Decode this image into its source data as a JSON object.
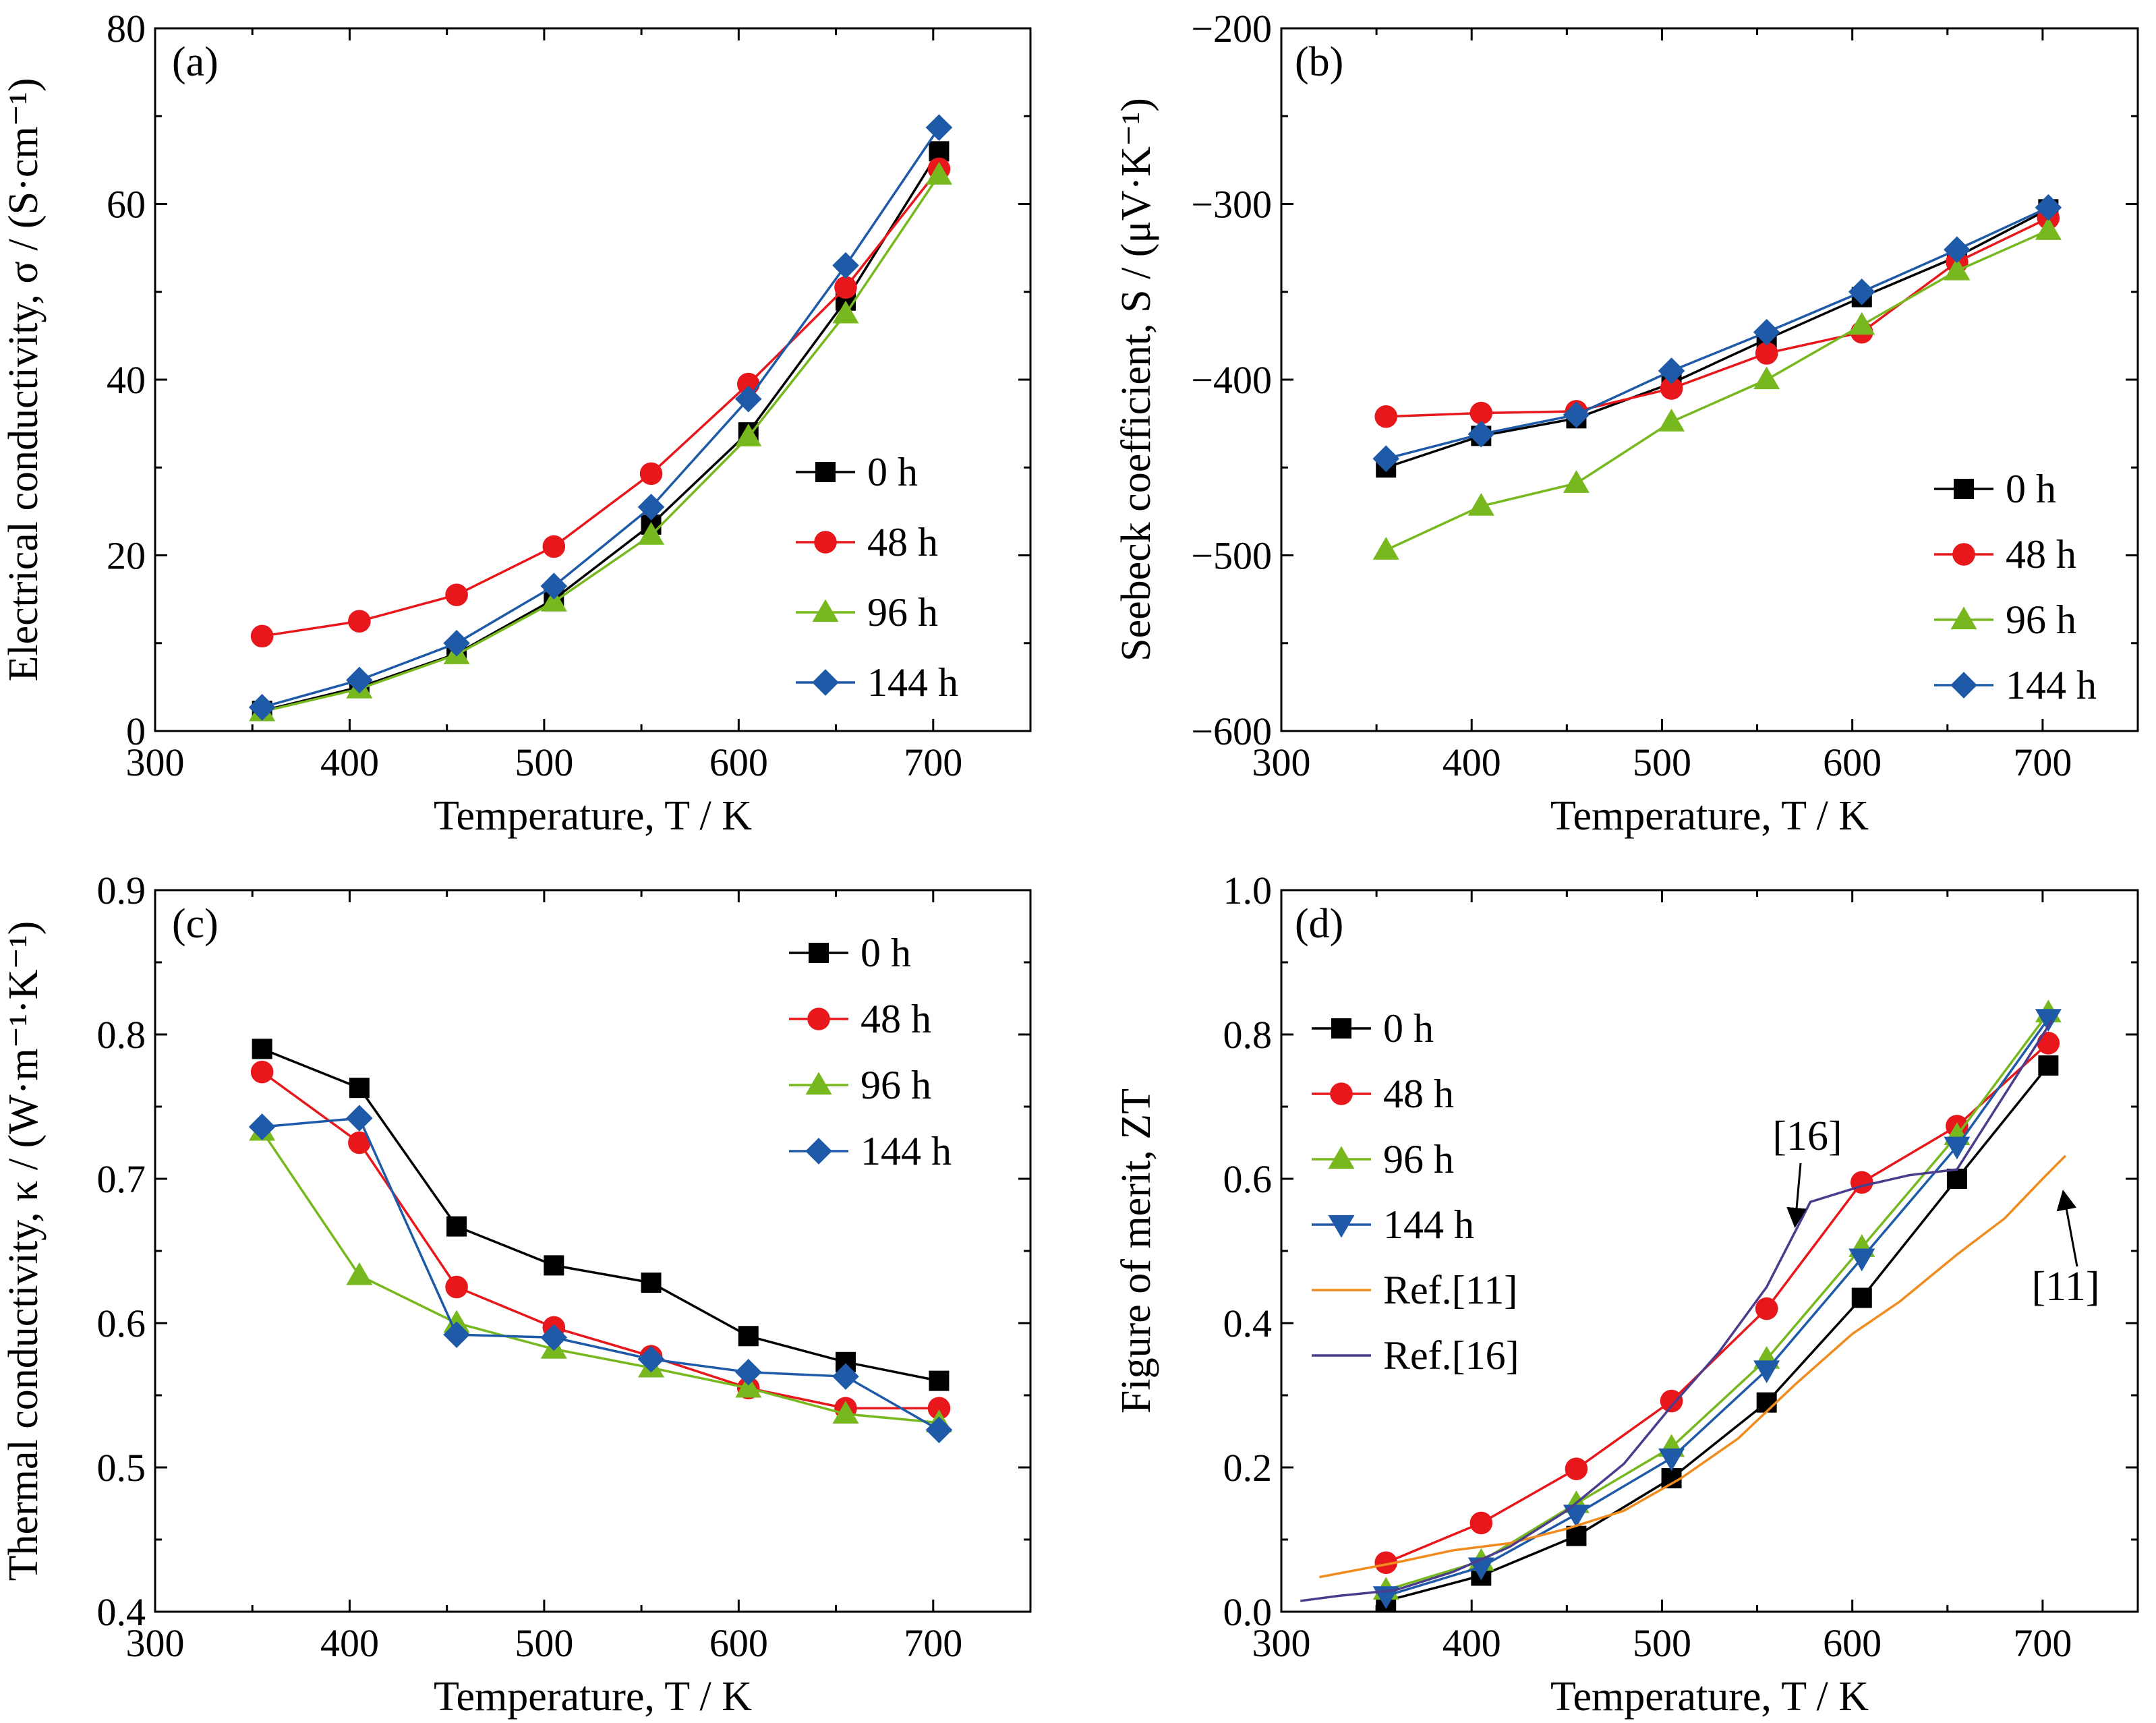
{
  "chart_data": [
    {
      "id": "a",
      "type": "line",
      "panel_label": "(a)",
      "xlabel": "Temperature, T / K",
      "ylabel": "Electrical conductivity, σ / (S·cm⁻¹)",
      "xlim": [
        300,
        750
      ],
      "ylim": [
        0,
        80
      ],
      "x_ticks": [
        "300",
        "400",
        "500",
        "600",
        "700"
      ],
      "y_ticks": [
        "0",
        "20",
        "40",
        "60",
        "80"
      ],
      "legend_position": "right",
      "series": [
        {
          "name": "0 h",
          "marker": "square",
          "color": "#000000",
          "x": [
            355,
            405,
            455,
            505,
            555,
            605,
            655,
            703
          ],
          "values": [
            2.3,
            5.0,
            8.8,
            15.0,
            23.5,
            34.0,
            49.0,
            66.0
          ]
        },
        {
          "name": "48 h",
          "marker": "circle",
          "color": "#e8171b",
          "x": [
            355,
            405,
            455,
            505,
            555,
            605,
            655,
            703
          ],
          "values": [
            10.8,
            12.5,
            15.5,
            21.0,
            29.3,
            39.5,
            50.5,
            64.0
          ]
        },
        {
          "name": "96 h",
          "marker": "triangle-up",
          "color": "#77b81e",
          "x": [
            355,
            405,
            455,
            505,
            555,
            605,
            655,
            703
          ],
          "values": [
            2.2,
            4.8,
            8.7,
            14.7,
            22.3,
            33.5,
            47.5,
            63.3
          ]
        },
        {
          "name": "144 h",
          "marker": "diamond",
          "color": "#1e5aa8",
          "x": [
            355,
            405,
            455,
            505,
            555,
            605,
            655,
            703
          ],
          "values": [
            2.7,
            5.8,
            10.0,
            16.5,
            25.5,
            37.8,
            53.0,
            68.7
          ]
        }
      ]
    },
    {
      "id": "b",
      "type": "line",
      "panel_label": "(b)",
      "xlabel": "Temperature, T / K",
      "ylabel": "Seebeck coefficient, S / (μV·K⁻¹)",
      "xlim": [
        300,
        750
      ],
      "ylim": [
        -600,
        -200
      ],
      "x_ticks": [
        "300",
        "400",
        "500",
        "600",
        "700"
      ],
      "y_ticks": [
        "−600",
        "−500",
        "−400",
        "−300",
        "−200"
      ],
      "legend_position": "bottom-right",
      "series": [
        {
          "name": "0 h",
          "marker": "square",
          "color": "#000000",
          "x": [
            355,
            405,
            455,
            505,
            555,
            605,
            655,
            703
          ],
          "values": [
            -450,
            -432,
            -422,
            -402,
            -377,
            -353,
            -330,
            -303
          ]
        },
        {
          "name": "48 h",
          "marker": "circle",
          "color": "#e8171b",
          "x": [
            355,
            405,
            455,
            505,
            555,
            605,
            655,
            703
          ],
          "values": [
            -421,
            -419,
            -418,
            -405,
            -385,
            -373,
            -333,
            -308
          ]
        },
        {
          "name": "96 h",
          "marker": "triangle-up",
          "color": "#77b81e",
          "x": [
            355,
            405,
            455,
            505,
            555,
            605,
            655,
            703
          ],
          "values": [
            -497,
            -472,
            -459,
            -424,
            -400,
            -369,
            -338,
            -315
          ]
        },
        {
          "name": "144 h",
          "marker": "diamond",
          "color": "#1e5aa8",
          "x": [
            355,
            405,
            455,
            505,
            555,
            605,
            655,
            703
          ],
          "values": [
            -445,
            -431,
            -420,
            -395,
            -373,
            -350,
            -326,
            -302
          ]
        }
      ]
    },
    {
      "id": "c",
      "type": "line",
      "panel_label": "(c)",
      "xlabel": "Temperature, T / K",
      "ylabel": "Thermal conductivity, κ / (W·m⁻¹·K⁻¹)",
      "xlim": [
        300,
        750
      ],
      "ylim": [
        0.4,
        0.9
      ],
      "x_ticks": [
        "300",
        "400",
        "500",
        "600",
        "700"
      ],
      "y_ticks": [
        "0.4",
        "0.5",
        "0.6",
        "0.7",
        "0.8",
        "0.9"
      ],
      "legend_position": "top-right",
      "series": [
        {
          "name": "0 h",
          "marker": "square",
          "color": "#000000",
          "x": [
            355,
            405,
            455,
            505,
            555,
            605,
            655,
            703
          ],
          "values": [
            0.79,
            0.763,
            0.667,
            0.64,
            0.628,
            0.591,
            0.573,
            0.56
          ]
        },
        {
          "name": "48 h",
          "marker": "circle",
          "color": "#e8171b",
          "x": [
            355,
            405,
            455,
            505,
            555,
            605,
            655,
            703
          ],
          "values": [
            0.774,
            0.725,
            0.625,
            0.597,
            0.577,
            0.555,
            0.541,
            0.541
          ]
        },
        {
          "name": "96 h",
          "marker": "triangle-up",
          "color": "#77b81e",
          "x": [
            355,
            405,
            455,
            505,
            555,
            605,
            655,
            703
          ],
          "values": [
            0.733,
            0.633,
            0.6,
            0.582,
            0.569,
            0.555,
            0.537,
            0.531
          ]
        },
        {
          "name": "144 h",
          "marker": "diamond",
          "color": "#1e5aa8",
          "x": [
            355,
            405,
            455,
            505,
            555,
            605,
            655,
            703
          ],
          "values": [
            0.736,
            0.742,
            0.592,
            0.59,
            0.575,
            0.566,
            0.563,
            0.526
          ]
        }
      ]
    },
    {
      "id": "d",
      "type": "line",
      "panel_label": "(d)",
      "xlabel": "Temperature, T / K",
      "ylabel": "Figure of merit, ZT",
      "xlim": [
        300,
        750
      ],
      "ylim": [
        0.0,
        1.0
      ],
      "x_ticks": [
        "300",
        "400",
        "500",
        "600",
        "700"
      ],
      "y_ticks": [
        "0.0",
        "0.2",
        "0.4",
        "0.6",
        "0.8",
        "1.0"
      ],
      "legend_position": "left",
      "annotations": [
        "[16]",
        "[11]"
      ],
      "series": [
        {
          "name": "0 h",
          "marker": "square",
          "color": "#000000",
          "x": [
            355,
            405,
            455,
            505,
            555,
            605,
            655,
            703
          ],
          "values": [
            0.015,
            0.05,
            0.105,
            0.185,
            0.29,
            0.435,
            0.6,
            0.757
          ]
        },
        {
          "name": "48 h",
          "marker": "circle",
          "color": "#e8171b",
          "x": [
            355,
            405,
            455,
            505,
            555,
            605,
            655,
            703
          ],
          "values": [
            0.068,
            0.123,
            0.198,
            0.292,
            0.42,
            0.595,
            0.673,
            0.788
          ]
        },
        {
          "name": "96 h",
          "marker": "triangle-up",
          "color": "#77b81e",
          "x": [
            355,
            405,
            455,
            505,
            555,
            605,
            655,
            703
          ],
          "values": [
            0.03,
            0.07,
            0.15,
            0.228,
            0.35,
            0.505,
            0.66,
            0.83
          ]
        },
        {
          "name": "144 h",
          "marker": "triangle-down",
          "color": "#1e5aa8",
          "x": [
            355,
            405,
            455,
            505,
            555,
            605,
            655,
            703
          ],
          "values": [
            0.022,
            0.062,
            0.135,
            0.213,
            0.335,
            0.49,
            0.645,
            0.822
          ]
        },
        {
          "name": "Ref.[11]",
          "marker": "none",
          "color": "#f08c1e",
          "x": [
            320,
            340,
            360,
            390,
            420,
            450,
            480,
            510,
            540,
            570,
            600,
            625,
            655,
            680,
            700,
            712
          ],
          "values": [
            0.048,
            0.058,
            0.068,
            0.085,
            0.095,
            0.115,
            0.14,
            0.185,
            0.24,
            0.315,
            0.385,
            0.43,
            0.495,
            0.545,
            0.6,
            0.632
          ]
        },
        {
          "name": "Ref.[16]",
          "marker": "none",
          "color": "#4b3c8c",
          "x": [
            310,
            330,
            360,
            390,
            420,
            450,
            480,
            505,
            530,
            555,
            578,
            605,
            630,
            655,
            705
          ],
          "values": [
            0.015,
            0.022,
            0.03,
            0.055,
            0.09,
            0.14,
            0.205,
            0.285,
            0.36,
            0.45,
            0.568,
            0.59,
            0.605,
            0.613,
            0.82
          ]
        }
      ]
    }
  ]
}
